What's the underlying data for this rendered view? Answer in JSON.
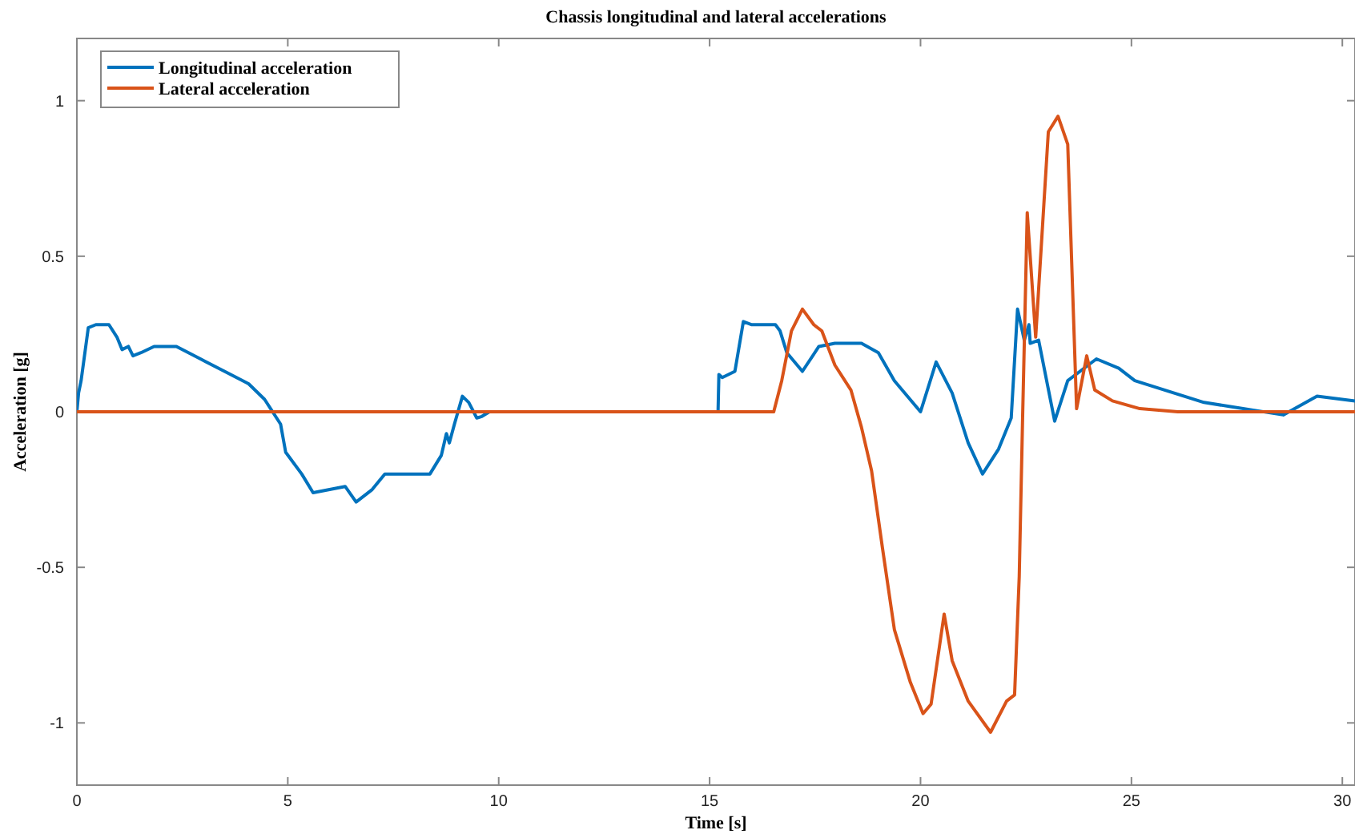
{
  "chart_data": {
    "type": "line",
    "title": "Chassis longitudinal and lateral accelerations",
    "xlabel": "Time [s]",
    "ylabel": "Acceleration [g]",
    "xlim": [
      0,
      30.3
    ],
    "ylim": [
      -1.2,
      1.2
    ],
    "xticks": [
      0,
      5,
      10,
      15,
      20,
      25,
      30
    ],
    "yticks": [
      -1,
      -0.5,
      0,
      0.5,
      1
    ],
    "grid": false,
    "legend": "top left",
    "marker": "none",
    "line_style": "solid",
    "series": [
      {
        "name": "Longitudinal acceleration",
        "color": "#0072bd",
        "x": [
          0,
          0.04,
          0.1,
          0.27,
          0.45,
          0.76,
          0.95,
          1.07,
          1.22,
          1.33,
          1.52,
          1.83,
          2.36,
          2.93,
          3.5,
          4.07,
          4.45,
          4.83,
          4.95,
          5.33,
          5.6,
          6.36,
          6.62,
          7.0,
          7.3,
          7.88,
          8.37,
          8.64,
          8.76,
          8.83,
          8.95,
          9.14,
          9.29,
          9.48,
          9.6,
          9.78,
          12,
          15.2,
          15.22,
          15.3,
          15.6,
          15.8,
          16.0,
          16.56,
          16.67,
          16.83,
          17.2,
          17.59,
          17.97,
          18.6,
          19.0,
          19.38,
          20.0,
          20.37,
          20.75,
          21.13,
          21.47,
          21.85,
          22.15,
          22.3,
          22.38,
          22.46,
          22.57,
          22.6,
          22.8,
          23.18,
          23.49,
          24.17,
          24.7,
          25.08,
          26.72,
          28.6,
          29.4,
          30.3
        ],
        "values": [
          0,
          0.06,
          0.1,
          0.27,
          0.28,
          0.28,
          0.24,
          0.2,
          0.21,
          0.18,
          0.19,
          0.21,
          0.21,
          0.17,
          0.13,
          0.09,
          0.04,
          -0.04,
          -0.13,
          -0.2,
          -0.26,
          -0.24,
          -0.29,
          -0.25,
          -0.2,
          -0.2,
          -0.2,
          -0.14,
          -0.07,
          -0.1,
          -0.04,
          0.05,
          0.03,
          -0.02,
          -0.015,
          0,
          0,
          0,
          0.12,
          0.11,
          0.13,
          0.29,
          0.28,
          0.28,
          0.26,
          0.19,
          0.13,
          0.21,
          0.22,
          0.22,
          0.19,
          0.1,
          0,
          0.16,
          0.06,
          -0.1,
          -0.2,
          -0.12,
          -0.02,
          0.33,
          0.28,
          0.23,
          0.28,
          0.22,
          0.23,
          -0.03,
          0.1,
          0.17,
          0.14,
          0.1,
          0.03,
          -0.01,
          0.05,
          0.035
        ]
      },
      {
        "name": "Lateral acceleration",
        "color": "#d95319",
        "x": [
          0,
          10,
          16.52,
          16.71,
          16.94,
          17.2,
          17.47,
          17.66,
          17.97,
          18.35,
          18.6,
          18.84,
          19.1,
          19.38,
          19.76,
          20.06,
          20.25,
          20.56,
          20.75,
          21.13,
          21.66,
          22.04,
          22.23,
          22.34,
          22.42,
          22.53,
          22.73,
          23.03,
          23.26,
          23.49,
          23.7,
          23.94,
          24.13,
          24.55,
          25.2,
          26.1,
          30.3
        ],
        "values": [
          0,
          0,
          0,
          0.1,
          0.26,
          0.33,
          0.28,
          0.26,
          0.15,
          0.07,
          -0.05,
          -0.19,
          -0.44,
          -0.7,
          -0.87,
          -0.97,
          -0.94,
          -0.65,
          -0.8,
          -0.93,
          -1.03,
          -0.93,
          -0.91,
          -0.53,
          -0.02,
          0.64,
          0.24,
          0.9,
          0.95,
          0.86,
          0.01,
          0.18,
          0.07,
          0.035,
          0.01,
          0,
          0
        ]
      }
    ]
  }
}
